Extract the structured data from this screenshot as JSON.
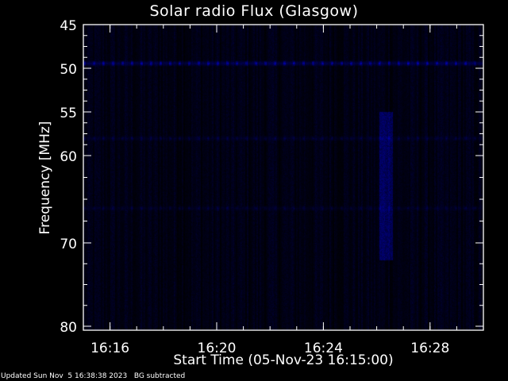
{
  "chart_data": {
    "type": "heatmap",
    "title": "Solar radio Flux (Glasgow)",
    "xlabel": "Start Time (05-Nov-23 16:15:00)",
    "ylabel": "Frequency [MHz]",
    "x_range": [
      "16:15",
      "16:30"
    ],
    "y_range": [
      45,
      80
    ],
    "y_inverted": true,
    "x_ticks": [
      "16:16",
      "16:20",
      "16:24",
      "16:28"
    ],
    "y_ticks": [
      45,
      50,
      55,
      60,
      70,
      80
    ],
    "colormap": [
      "#000000",
      "#0000ff"
    ],
    "features": [
      {
        "kind": "interference band",
        "frequency_mhz": 49.4,
        "intensity": 0.8
      },
      {
        "kind": "faint band",
        "frequency_mhz": 58,
        "intensity": 0.25
      },
      {
        "kind": "faint band",
        "frequency_mhz": 66,
        "intensity": 0.2
      },
      {
        "kind": "burst",
        "time_start": "16:26.1",
        "time_end": "16:26.6",
        "freq_low_mhz": 55,
        "freq_high_mhz": 72,
        "intensity": 0.4
      }
    ]
  },
  "footer": {
    "updated": "Updated Sun Nov  5 16:38:38 2023",
    "note": "BG subtracted"
  },
  "colors": {
    "axes": "#ffffff",
    "background": "#000000",
    "signal": "#0000ff"
  }
}
